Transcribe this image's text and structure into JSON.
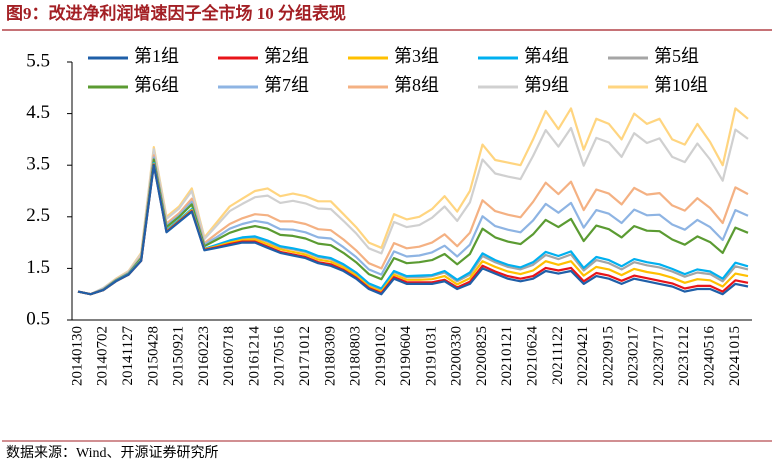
{
  "chart_data": {
    "type": "line",
    "title": "图9：改进净利润增速因子全市场 10 分组表现",
    "source": "数据来源：Wind、开源证券研究所",
    "categories": [
      "20140130",
      null,
      "20140702",
      null,
      "20141127",
      null,
      "20150428",
      null,
      "20150921",
      null,
      "20160223",
      null,
      "20160718",
      null,
      "20161214",
      null,
      "20170516",
      null,
      "20171012",
      null,
      "20180309",
      null,
      "20180803",
      null,
      "20190102",
      null,
      "20190604",
      null,
      "20191031",
      null,
      "20200330",
      null,
      "20200825",
      null,
      "20210121",
      null,
      "20210624",
      null,
      "20211122",
      null,
      "20220421",
      null,
      "20220915",
      null,
      "20230217",
      null,
      "20230717",
      null,
      "20231212",
      null,
      "20240516",
      null,
      "20241015",
      null
    ],
    "ylim": [
      0.5,
      5.5
    ],
    "yticks": [
      0.5,
      1.5,
      2.5,
      3.5,
      4.5,
      5.5
    ],
    "grid": false,
    "series": [
      {
        "name": "第1组",
        "color": "#1f5fa8",
        "values": [
          1.05,
          1.0,
          1.08,
          1.25,
          1.38,
          1.65,
          3.5,
          2.2,
          2.4,
          2.6,
          1.85,
          1.9,
          1.95,
          2.0,
          2.0,
          1.9,
          1.8,
          1.75,
          1.7,
          1.6,
          1.55,
          1.45,
          1.3,
          1.1,
          1.0,
          1.3,
          1.2,
          1.2,
          1.2,
          1.25,
          1.1,
          1.2,
          1.5,
          1.4,
          1.3,
          1.25,
          1.3,
          1.45,
          1.4,
          1.45,
          1.2,
          1.35,
          1.3,
          1.2,
          1.3,
          1.25,
          1.2,
          1.15,
          1.05,
          1.1,
          1.1,
          1.0,
          1.2,
          1.15
        ]
      },
      {
        "name": "第2组",
        "color": "#e8141a",
        "values": [
          1.05,
          1.0,
          1.08,
          1.25,
          1.38,
          1.65,
          3.51,
          2.21,
          2.41,
          2.61,
          1.86,
          1.91,
          1.97,
          2.02,
          2.02,
          1.92,
          1.82,
          1.77,
          1.72,
          1.62,
          1.58,
          1.47,
          1.32,
          1.12,
          1.02,
          1.33,
          1.23,
          1.23,
          1.23,
          1.28,
          1.13,
          1.24,
          1.55,
          1.44,
          1.35,
          1.3,
          1.35,
          1.51,
          1.46,
          1.51,
          1.25,
          1.41,
          1.36,
          1.26,
          1.36,
          1.31,
          1.26,
          1.21,
          1.11,
          1.16,
          1.16,
          1.05,
          1.27,
          1.22
        ]
      },
      {
        "name": "第3组",
        "color": "#ffc000",
        "values": [
          1.05,
          1.0,
          1.08,
          1.25,
          1.38,
          1.66,
          3.52,
          2.22,
          2.42,
          2.63,
          1.87,
          1.93,
          2.0,
          2.05,
          2.06,
          1.97,
          1.87,
          1.82,
          1.77,
          1.67,
          1.63,
          1.52,
          1.36,
          1.15,
          1.05,
          1.38,
          1.28,
          1.28,
          1.29,
          1.35,
          1.19,
          1.31,
          1.64,
          1.53,
          1.44,
          1.39,
          1.46,
          1.64,
          1.57,
          1.64,
          1.36,
          1.53,
          1.48,
          1.37,
          1.49,
          1.43,
          1.39,
          1.32,
          1.22,
          1.29,
          1.27,
          1.15,
          1.4,
          1.35
        ]
      },
      {
        "name": "第4组",
        "color": "#00b0f0",
        "values": [
          1.05,
          1.0,
          1.08,
          1.26,
          1.39,
          1.67,
          3.54,
          2.24,
          2.44,
          2.65,
          1.88,
          1.96,
          2.04,
          2.1,
          2.12,
          2.04,
          1.93,
          1.89,
          1.84,
          1.74,
          1.7,
          1.58,
          1.42,
          1.21,
          1.11,
          1.45,
          1.35,
          1.36,
          1.37,
          1.45,
          1.28,
          1.42,
          1.79,
          1.66,
          1.57,
          1.52,
          1.62,
          1.82,
          1.74,
          1.83,
          1.51,
          1.72,
          1.66,
          1.54,
          1.68,
          1.62,
          1.58,
          1.49,
          1.39,
          1.48,
          1.44,
          1.3,
          1.61,
          1.54
        ]
      },
      {
        "name": "第5组",
        "color": "#a5a5a5",
        "values": [
          1.05,
          1.0,
          1.08,
          1.26,
          1.39,
          1.67,
          3.54,
          2.23,
          2.43,
          2.65,
          1.88,
          1.95,
          2.03,
          2.09,
          2.1,
          2.02,
          1.91,
          1.87,
          1.82,
          1.72,
          1.68,
          1.56,
          1.4,
          1.19,
          1.09,
          1.43,
          1.33,
          1.33,
          1.35,
          1.42,
          1.25,
          1.38,
          1.74,
          1.62,
          1.53,
          1.48,
          1.57,
          1.76,
          1.68,
          1.77,
          1.46,
          1.66,
          1.6,
          1.48,
          1.62,
          1.56,
          1.52,
          1.44,
          1.34,
          1.42,
          1.39,
          1.25,
          1.54,
          1.48
        ]
      },
      {
        "name": "第6组",
        "color": "#5b9b32",
        "values": [
          1.05,
          1.0,
          1.09,
          1.27,
          1.4,
          1.7,
          3.61,
          2.3,
          2.5,
          2.74,
          1.93,
          2.06,
          2.19,
          2.27,
          2.32,
          2.27,
          2.15,
          2.13,
          2.08,
          1.98,
          1.95,
          1.8,
          1.62,
          1.39,
          1.29,
          1.7,
          1.6,
          1.62,
          1.66,
          1.78,
          1.58,
          1.78,
          2.27,
          2.1,
          2.02,
          1.97,
          2.16,
          2.44,
          2.3,
          2.46,
          2.03,
          2.33,
          2.26,
          2.1,
          2.32,
          2.23,
          2.22,
          2.06,
          1.96,
          2.12,
          2.01,
          1.8,
          2.29,
          2.19
        ]
      },
      {
        "name": "第7组",
        "color": "#8eb4e3",
        "values": [
          1.05,
          1.0,
          1.1,
          1.27,
          1.41,
          1.71,
          3.65,
          2.33,
          2.53,
          2.79,
          1.96,
          2.11,
          2.27,
          2.36,
          2.42,
          2.38,
          2.26,
          2.25,
          2.2,
          2.1,
          2.08,
          1.91,
          1.72,
          1.48,
          1.38,
          1.83,
          1.73,
          1.75,
          1.81,
          1.94,
          1.73,
          1.96,
          2.51,
          2.32,
          2.25,
          2.2,
          2.43,
          2.75,
          2.58,
          2.77,
          2.29,
          2.63,
          2.56,
          2.38,
          2.64,
          2.53,
          2.54,
          2.35,
          2.25,
          2.44,
          2.3,
          2.05,
          2.63,
          2.52
        ]
      },
      {
        "name": "第8组",
        "color": "#f4b183",
        "values": [
          1.05,
          1.0,
          1.1,
          1.28,
          1.42,
          1.73,
          3.69,
          2.37,
          2.57,
          2.85,
          1.99,
          2.18,
          2.36,
          2.47,
          2.55,
          2.53,
          2.41,
          2.41,
          2.36,
          2.26,
          2.24,
          2.06,
          1.85,
          1.6,
          1.5,
          1.99,
          1.89,
          1.92,
          2.0,
          2.16,
          1.93,
          2.19,
          2.82,
          2.61,
          2.54,
          2.49,
          2.79,
          3.16,
          2.94,
          3.18,
          2.63,
          3.03,
          2.95,
          2.74,
          3.06,
          2.93,
          2.96,
          2.72,
          2.62,
          2.86,
          2.67,
          2.38,
          3.07,
          2.94
        ]
      },
      {
        "name": "第9组",
        "color": "#d0d0d0",
        "values": [
          1.05,
          1.0,
          1.12,
          1.29,
          1.44,
          1.78,
          3.81,
          2.46,
          2.66,
          3.0,
          2.07,
          2.34,
          2.61,
          2.75,
          2.88,
          2.91,
          2.77,
          2.81,
          2.76,
          2.66,
          2.65,
          2.42,
          2.18,
          1.89,
          1.79,
          2.4,
          2.3,
          2.34,
          2.48,
          2.7,
          2.42,
          2.78,
          3.61,
          3.34,
          3.28,
          3.23,
          3.68,
          4.18,
          3.86,
          4.22,
          3.49,
          4.03,
          3.94,
          3.66,
          4.12,
          3.93,
          4.02,
          3.66,
          3.56,
          3.92,
          3.61,
          3.2,
          4.19,
          4.01
        ]
      },
      {
        "name": "第10组",
        "color": "#ffd580",
        "values": [
          1.05,
          1.0,
          1.12,
          1.3,
          1.45,
          1.8,
          3.85,
          2.5,
          2.7,
          3.05,
          2.1,
          2.4,
          2.7,
          2.85,
          3.0,
          3.05,
          2.9,
          2.95,
          2.9,
          2.8,
          2.8,
          2.55,
          2.3,
          2.0,
          1.9,
          2.55,
          2.45,
          2.5,
          2.65,
          2.9,
          2.6,
          3.0,
          3.9,
          3.6,
          3.55,
          3.5,
          4.0,
          4.55,
          4.2,
          4.6,
          3.8,
          4.4,
          4.3,
          4.0,
          4.5,
          4.3,
          4.4,
          4.0,
          3.9,
          4.3,
          3.95,
          3.5,
          4.6,
          4.4
        ]
      }
    ]
  }
}
